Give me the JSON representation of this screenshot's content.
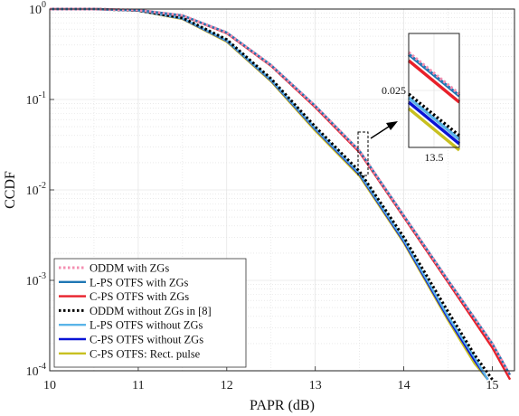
{
  "chart_data": {
    "type": "line",
    "title": "",
    "xlabel": "PAPR (dB)",
    "ylabel": "CCDF",
    "xlim": [
      10,
      15.25
    ],
    "ylim": [
      0.0001,
      1
    ],
    "yscale": "log",
    "grid": true,
    "legend_position": "bottom-left",
    "x_ticks": [
      "10",
      "11",
      "12",
      "13",
      "14",
      "15"
    ],
    "y_ticks": [
      {
        "base": "10",
        "exp": "0",
        "value": 1
      },
      {
        "base": "10",
        "exp": "-1",
        "value": 0.1
      },
      {
        "base": "10",
        "exp": "-2",
        "value": 0.01
      },
      {
        "base": "10",
        "exp": "-3",
        "value": 0.001
      },
      {
        "base": "10",
        "exp": "-4",
        "value": 0.0001
      }
    ],
    "series": [
      {
        "name": "ODDM with ZGs",
        "color": "#f48fb1",
        "style": "dotted",
        "x": [
          10,
          10.5,
          11,
          11.5,
          12,
          12.5,
          13,
          13.5,
          14,
          14.5,
          15,
          15.2
        ],
        "y": [
          1,
          0.999,
          0.975,
          0.85,
          0.55,
          0.24,
          0.085,
          0.027,
          0.0052,
          0.001,
          0.0002,
          9e-05
        ]
      },
      {
        "name": "L-PS OTFS with ZGs",
        "color": "#1f77b4",
        "style": "solid",
        "x": [
          10,
          10.5,
          11,
          11.5,
          12,
          12.5,
          13,
          13.5,
          14,
          14.5,
          15,
          15.2
        ],
        "y": [
          1,
          0.999,
          0.975,
          0.85,
          0.55,
          0.24,
          0.085,
          0.027,
          0.0052,
          0.001,
          0.0002,
          9e-05
        ]
      },
      {
        "name": "C-PS OTFS with ZGs",
        "color": "#e8202a",
        "style": "solid",
        "x": [
          10,
          10.5,
          11,
          11.5,
          12,
          12.5,
          13,
          13.5,
          14,
          14.5,
          15,
          15.2
        ],
        "y": [
          1,
          0.999,
          0.974,
          0.845,
          0.54,
          0.235,
          0.082,
          0.026,
          0.005,
          0.00095,
          0.00018,
          8e-05
        ]
      },
      {
        "name": "ODDM without ZGs in [8]",
        "color": "#000000",
        "style": "dotted",
        "x": [
          10,
          10.5,
          11,
          11.5,
          12,
          12.5,
          13,
          13.5,
          14,
          14.5,
          14.8,
          15.0
        ],
        "y": [
          1,
          0.999,
          0.965,
          0.8,
          0.46,
          0.17,
          0.05,
          0.016,
          0.003,
          0.00045,
          0.00015,
          8e-05
        ]
      },
      {
        "name": "L-PS OTFS without ZGs",
        "color": "#5ab4e8",
        "style": "solid",
        "x": [
          10,
          10.5,
          11,
          11.5,
          12,
          12.5,
          13,
          13.5,
          14,
          14.5,
          14.8,
          14.95
        ],
        "y": [
          1,
          0.999,
          0.963,
          0.79,
          0.45,
          0.165,
          0.048,
          0.0152,
          0.0028,
          0.0004,
          0.00014,
          8e-05
        ]
      },
      {
        "name": "C-PS OTFS without ZGs",
        "color": "#0a14d6",
        "style": "solid",
        "x": [
          10,
          10.5,
          11,
          11.5,
          12,
          12.5,
          13,
          13.5,
          14,
          14.5,
          14.8,
          14.95
        ],
        "y": [
          1,
          0.999,
          0.962,
          0.785,
          0.445,
          0.162,
          0.047,
          0.0148,
          0.0027,
          0.00038,
          0.00013,
          8e-05
        ]
      },
      {
        "name": "C-PS OTFS: Rect. pulse",
        "color": "#c8c020",
        "style": "solid",
        "x": [
          10,
          10.5,
          11,
          11.5,
          12,
          12.5,
          13,
          13.5,
          14,
          14.5,
          14.8,
          14.95
        ],
        "y": [
          1,
          0.999,
          0.96,
          0.775,
          0.435,
          0.158,
          0.045,
          0.0142,
          0.0026,
          0.00036,
          0.00012,
          8e-05
        ]
      }
    ],
    "inset": {
      "x_tick": "13.5",
      "y_tick": "0.025",
      "xlim": [
        13.35,
        13.65
      ],
      "ylim": [
        0.008,
        0.045
      ]
    }
  }
}
